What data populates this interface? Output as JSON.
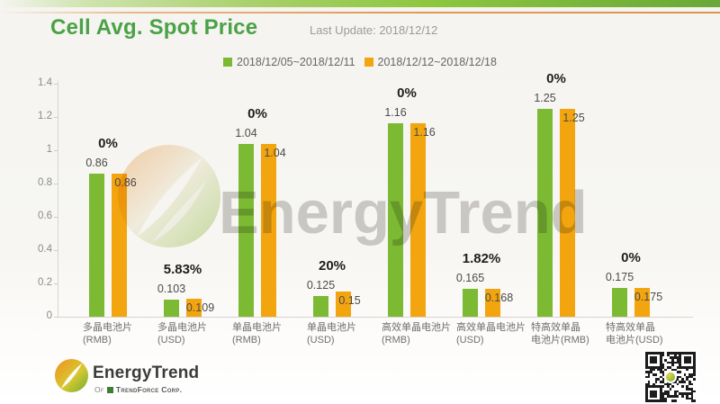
{
  "page": {
    "title": "Cell Avg. Spot Price",
    "last_update": "Last Update: 2018/12/12"
  },
  "colors": {
    "title_green": "#4aa246",
    "series_green": "#7cba33",
    "series_orange": "#f2a50f",
    "axis_gray": "#d7d5d0"
  },
  "watermark": {
    "text": "EnergyTrend"
  },
  "footer": {
    "brand": "EnergyTrend",
    "sub_prefix": "Of",
    "sub_brand": "TrendForce Corp."
  },
  "chart_data": {
    "type": "bar",
    "title": "Cell Avg. Spot Price",
    "xlabel": "",
    "ylabel": "",
    "ylim": [
      0,
      1.4
    ],
    "yticks": [
      "0",
      "0.2",
      "0.4",
      "0.6",
      "0.8",
      "1",
      "1.2",
      "1.4"
    ],
    "grid": false,
    "legend_position": "top",
    "categories": [
      [
        "多晶电池片",
        "(RMB)"
      ],
      [
        "多晶电池片",
        "(USD)"
      ],
      [
        "单晶电池片",
        "(RMB)"
      ],
      [
        "单晶电池片",
        "(USD)"
      ],
      [
        "高效单晶电池片",
        "(RMB)"
      ],
      [
        "高效单晶电池片",
        "(USD)"
      ],
      [
        "特高效单晶",
        "电池片(RMB)"
      ],
      [
        "特高效单晶",
        "电池片(USD)"
      ]
    ],
    "series": [
      {
        "name": "2018/12/05~2018/12/11",
        "color": "#7cba33",
        "values": [
          0.86,
          0.103,
          1.04,
          0.125,
          1.16,
          0.165,
          1.25,
          0.175
        ],
        "labels": [
          "0.86",
          "0.103",
          "1.04",
          "0.125",
          "1.16",
          "0.165",
          "1.25",
          "0.175"
        ]
      },
      {
        "name": "2018/12/12~2018/12/18",
        "color": "#f2a50f",
        "values": [
          0.86,
          0.109,
          1.04,
          0.15,
          1.16,
          0.168,
          1.25,
          0.175
        ],
        "labels": [
          "0.86",
          "0.109",
          "1.04",
          "0.15",
          "1.16",
          "0.168",
          "1.25",
          "0.175"
        ]
      }
    ],
    "change_labels": [
      "0%",
      "5.83%",
      "0%",
      "20%",
      "0%",
      "1.82%",
      "0%",
      "0%"
    ]
  }
}
